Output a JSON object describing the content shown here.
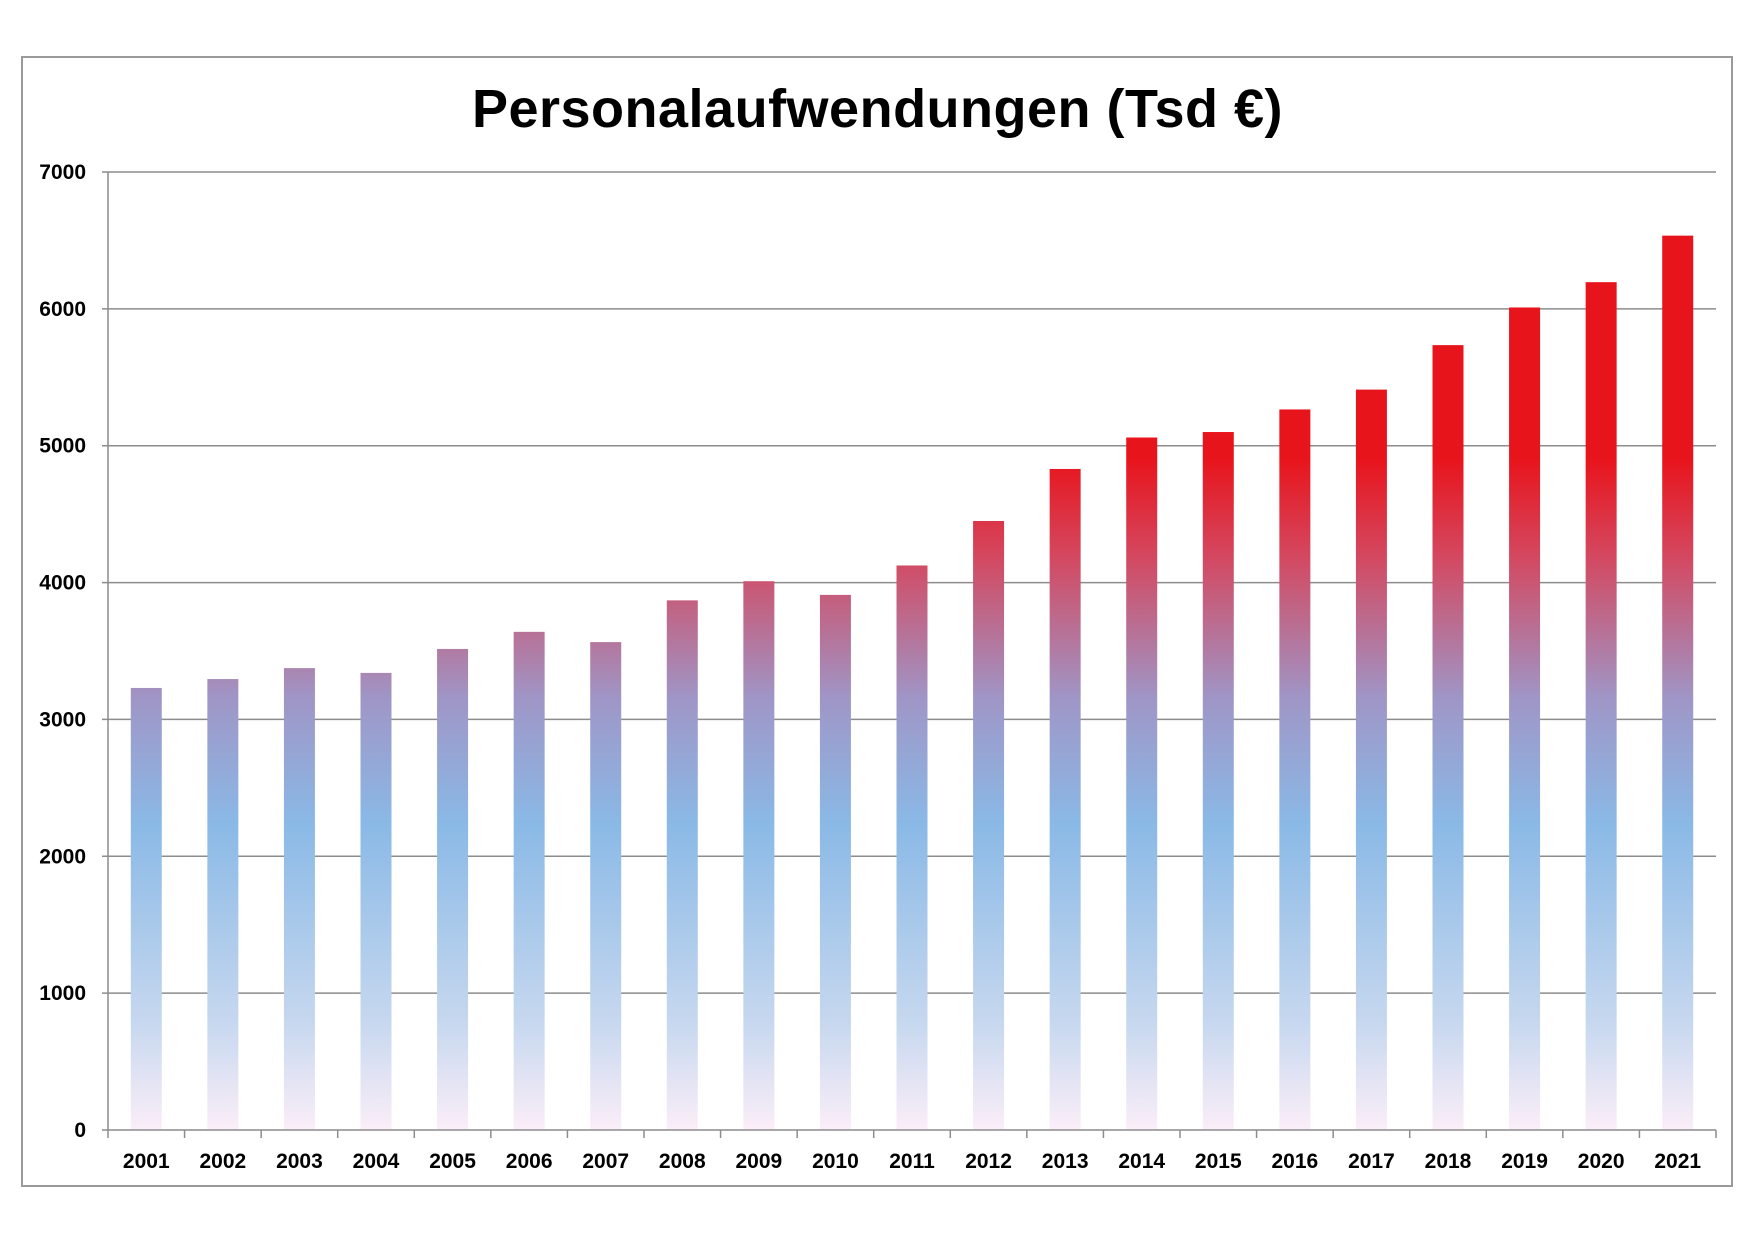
{
  "chart_data": {
    "type": "bar",
    "title": "Personalaufwendungen (Tsd €)",
    "xlabel": "",
    "ylabel": "",
    "categories": [
      "2001",
      "2002",
      "2003",
      "2004",
      "2005",
      "2006",
      "2007",
      "2008",
      "2009",
      "2010",
      "2011",
      "2012",
      "2013",
      "2014",
      "2015",
      "2016",
      "2017",
      "2018",
      "2019",
      "2020",
      "2021"
    ],
    "series": [
      {
        "values": [
          3230,
          3295,
          3375,
          3340,
          3515,
          3640,
          3565,
          3870,
          4010,
          3910,
          4125,
          4450,
          4830,
          5060,
          5100,
          5265,
          5410,
          5735,
          6010,
          6195,
          6535
        ]
      }
    ],
    "ylim": [
      0,
      7000
    ],
    "yticks": [
      0,
      1000,
      2000,
      3000,
      4000,
      5000,
      6000,
      7000
    ],
    "grid": "horizontal",
    "legend": "none",
    "colors": {
      "bar_top": "#e8141c",
      "bar_mid": "#8ab9e6",
      "bar_bottom": "#fbeef8",
      "grid": "#8c8c8c",
      "axis": "#8c8c8c"
    }
  }
}
